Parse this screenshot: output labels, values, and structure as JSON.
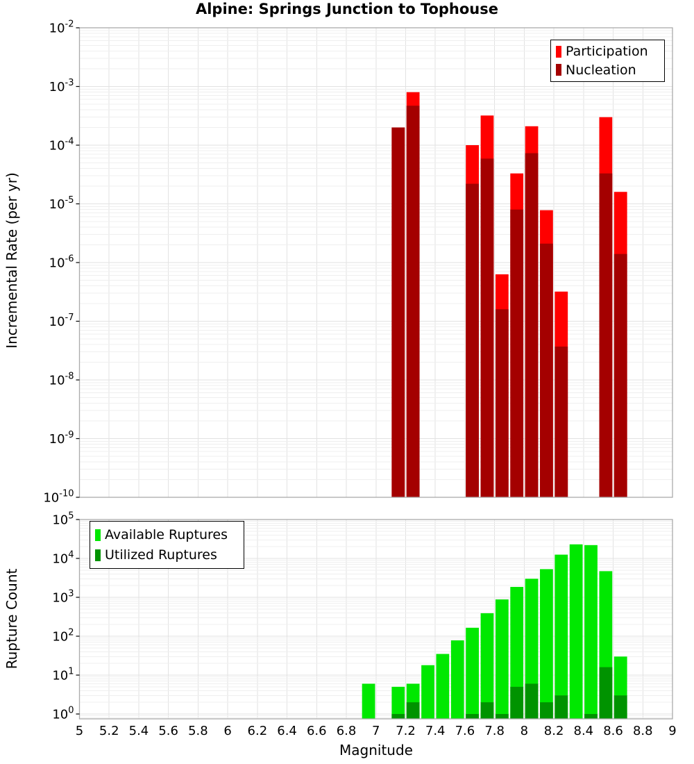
{
  "title": "Alpine: Springs Junction to Tophouse",
  "colors": {
    "participation": "#FF0000",
    "nucleation": "#A40000",
    "available": "#00E800",
    "utilized": "#009300",
    "spine": "#AAAAAA",
    "grid_major": "#E2E2E2",
    "grid_minor": "#EFEFEF",
    "background": "#FFFFFF",
    "text": "#000000",
    "legend_border": "#000000"
  },
  "x_ticks": [
    5,
    5.2,
    5.4,
    5.6,
    5.8,
    6,
    6.2,
    6.4,
    6.6,
    6.8,
    7,
    7.2,
    7.4,
    7.6,
    7.8,
    8,
    8.2,
    8.4,
    8.6,
    8.8,
    9
  ],
  "chart_data": [
    {
      "id": "incremental-rate",
      "type": "bar",
      "title": "Alpine: Springs Junction to Tophouse",
      "ylabel": "Incremental Rate (per yr)",
      "yscale": "log",
      "ylim": [
        1e-10,
        0.01
      ],
      "xlim": [
        5,
        9
      ],
      "grid": true,
      "bin_width": 0.1,
      "legend_position": "top-right",
      "y_tick_exponents": [
        -2,
        -3,
        -4,
        -5,
        -6,
        -7,
        -8,
        -9,
        -10
      ],
      "categories": [
        7.15,
        7.25,
        7.65,
        7.75,
        7.85,
        7.95,
        8.05,
        8.15,
        8.25,
        8.55,
        8.65
      ],
      "series": [
        {
          "name": "Participation",
          "color_key": "participation",
          "values": [
            0.0002,
            0.0008,
            0.0001,
            0.00032,
            6.3e-07,
            3.3e-05,
            0.00021,
            7.8e-06,
            3.2e-07,
            0.0003,
            1.6e-05
          ]
        },
        {
          "name": "Nucleation",
          "color_key": "nucleation",
          "values": [
            0.0002,
            0.00047,
            2.2e-05,
            5.9e-05,
            1.6e-07,
            8e-06,
            7.3e-05,
            2.1e-06,
            3.7e-08,
            3.3e-05,
            1.4e-06
          ]
        }
      ]
    },
    {
      "id": "rupture-count",
      "type": "bar",
      "xlabel": "Magnitude",
      "ylabel": "Rupture Count",
      "yscale": "log",
      "ylim": [
        1,
        100000.0
      ],
      "xlim": [
        5,
        9
      ],
      "grid": true,
      "bin_width": 0.1,
      "legend_position": "top-left",
      "y_tick_exponents": [
        5,
        4,
        3,
        2,
        1,
        0
      ],
      "categories": [
        6.95,
        7.15,
        7.25,
        7.35,
        7.45,
        7.55,
        7.65,
        7.75,
        7.85,
        7.95,
        8.05,
        8.15,
        8.25,
        8.35,
        8.45,
        8.55,
        8.65
      ],
      "series": [
        {
          "name": "Available Ruptures",
          "color_key": "available",
          "values": [
            6,
            5,
            6,
            18,
            35,
            78,
            165,
            390,
            880,
            1850,
            3000,
            5300,
            12500,
            23000,
            22000,
            4700,
            30
          ]
        },
        {
          "name": "Utilized Ruptures",
          "color_key": "utilized",
          "values": [
            null,
            1,
            2,
            null,
            null,
            null,
            1,
            2,
            1,
            5,
            6,
            2,
            3,
            null,
            1,
            16,
            3
          ]
        }
      ]
    }
  ]
}
